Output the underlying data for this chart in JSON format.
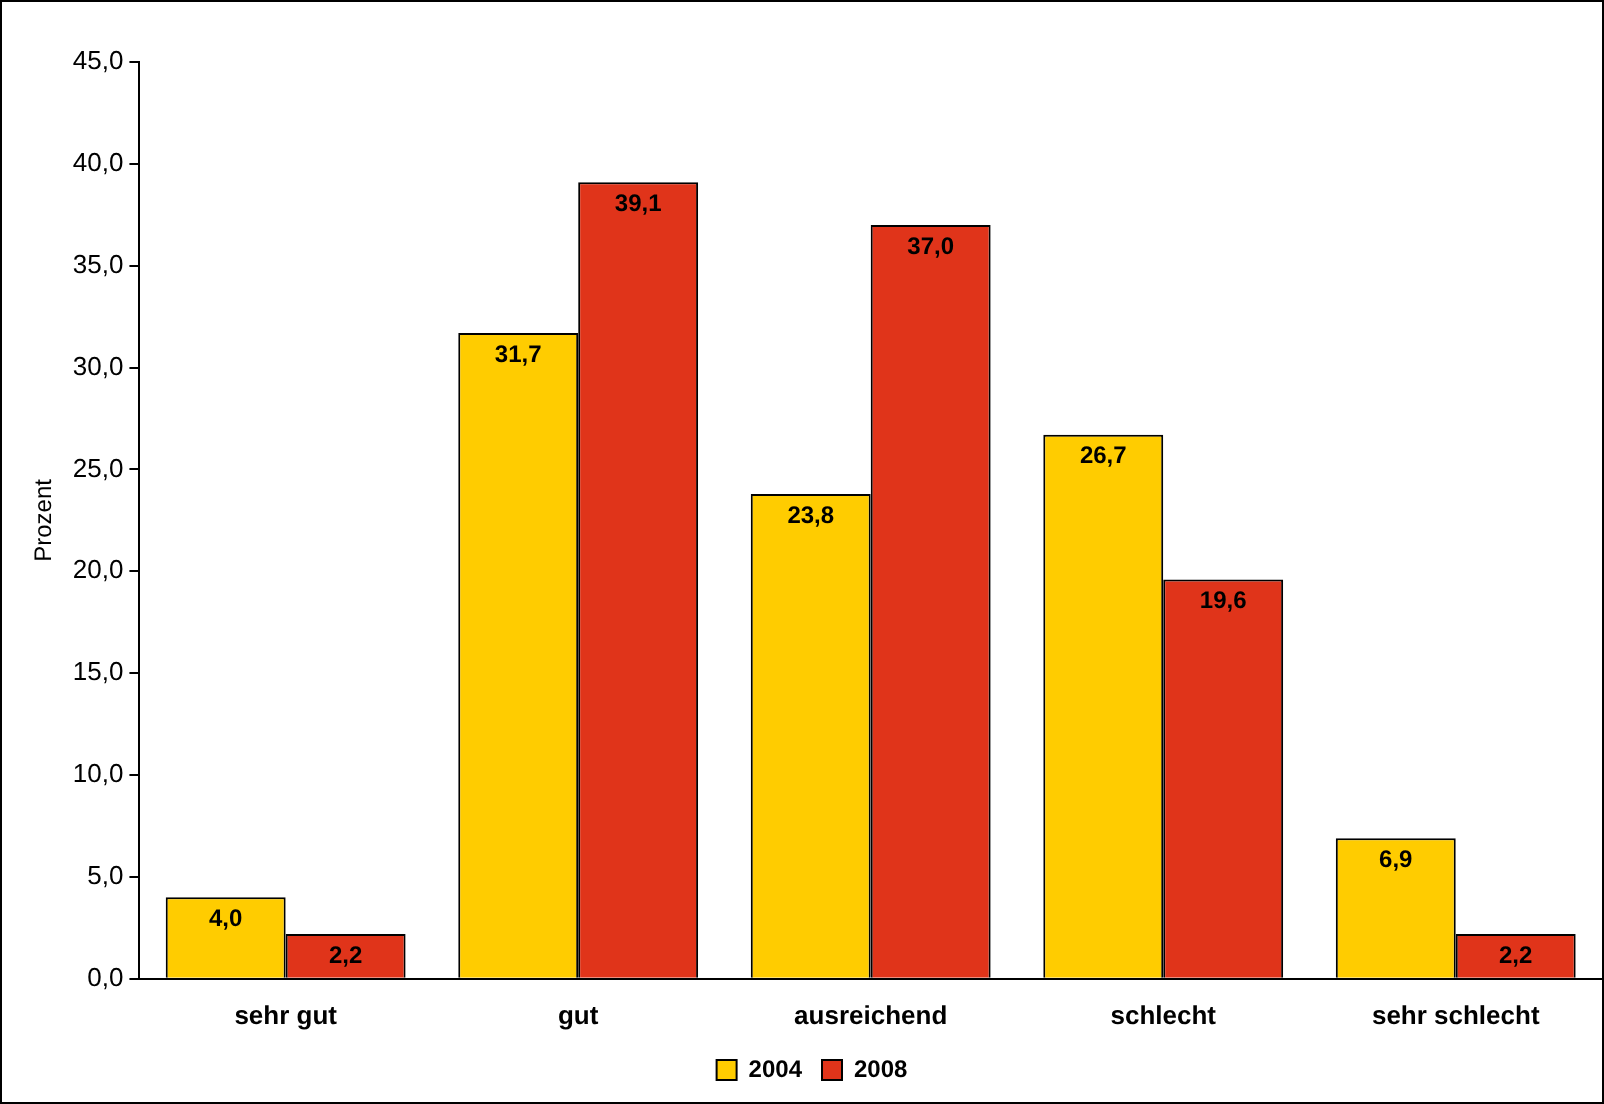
{
  "chart_data": {
    "type": "bar",
    "ylabel": "Prozent",
    "categories": [
      "sehr gut",
      "gut",
      "ausreichend",
      "schlecht",
      "sehr schlecht"
    ],
    "series": [
      {
        "name": "2004",
        "color": "#ffcc00",
        "values": [
          4.0,
          31.7,
          23.8,
          26.7,
          6.9
        ],
        "value_labels": [
          "4,0",
          "31,7",
          "23,8",
          "26,7",
          "6,9"
        ]
      },
      {
        "name": "2008",
        "color": "#e0341a",
        "values": [
          2.2,
          39.1,
          37.0,
          19.6,
          2.2
        ],
        "value_labels": [
          "2,2",
          "39,1",
          "37,0",
          "19,6",
          "2,2"
        ]
      }
    ],
    "ylim": [
      0,
      45
    ],
    "yticks": [
      {
        "value": 0,
        "label": "0,0"
      },
      {
        "value": 5,
        "label": "5,0"
      },
      {
        "value": 10,
        "label": "10,0"
      },
      {
        "value": 15,
        "label": "15,0"
      },
      {
        "value": 20,
        "label": "20,0"
      },
      {
        "value": 25,
        "label": "25,0"
      },
      {
        "value": 30,
        "label": "30,0"
      },
      {
        "value": 35,
        "label": "35,0"
      },
      {
        "value": 40,
        "label": "40,0"
      },
      {
        "value": 45,
        "label": "45,0"
      }
    ],
    "grid": false,
    "legend": "bottom"
  }
}
